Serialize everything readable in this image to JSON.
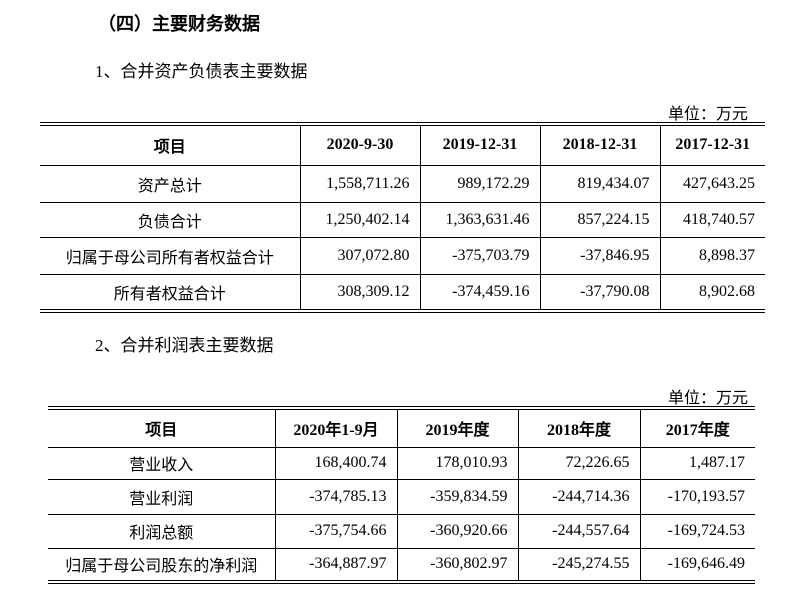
{
  "heading": "（四）主要财务数据",
  "section1": {
    "title": "1、合并资产负债表主要数据",
    "unit": "单位：万元",
    "table": {
      "header": [
        "项目",
        "2020-9-30",
        "2019-12-31",
        "2018-12-31",
        "2017-12-31"
      ],
      "rows": [
        [
          "资产总计",
          "1,558,711.26",
          "989,172.29",
          "819,434.07",
          "427,643.25"
        ],
        [
          "负债合计",
          "1,250,402.14",
          "1,363,631.46",
          "857,224.15",
          "418,740.57"
        ],
        [
          "归属于母公司所有者权益合计",
          "307,072.80",
          "-375,703.79",
          "-37,846.95",
          "8,898.37"
        ],
        [
          "所有者权益合计",
          "308,309.12",
          "-374,459.16",
          "-37,790.08",
          "8,902.68"
        ]
      ]
    }
  },
  "section2": {
    "title": "2、合并利润表主要数据",
    "unit": "单位：万元",
    "table": {
      "header": [
        "项目",
        "2020年1-9月",
        "2019年度",
        "2018年度",
        "2017年度"
      ],
      "rows": [
        [
          "营业收入",
          "168,400.74",
          "178,010.93",
          "72,226.65",
          "1,487.17"
        ],
        [
          "营业利润",
          "-374,785.13",
          "-359,834.59",
          "-244,714.36",
          "-170,193.57"
        ],
        [
          "利润总额",
          "-375,754.66",
          "-360,920.66",
          "-244,557.64",
          "-169,724.53"
        ],
        [
          "归属于母公司股东的净利润",
          "-364,887.97",
          "-360,802.97",
          "-245,274.55",
          "-169,646.49"
        ]
      ]
    }
  }
}
